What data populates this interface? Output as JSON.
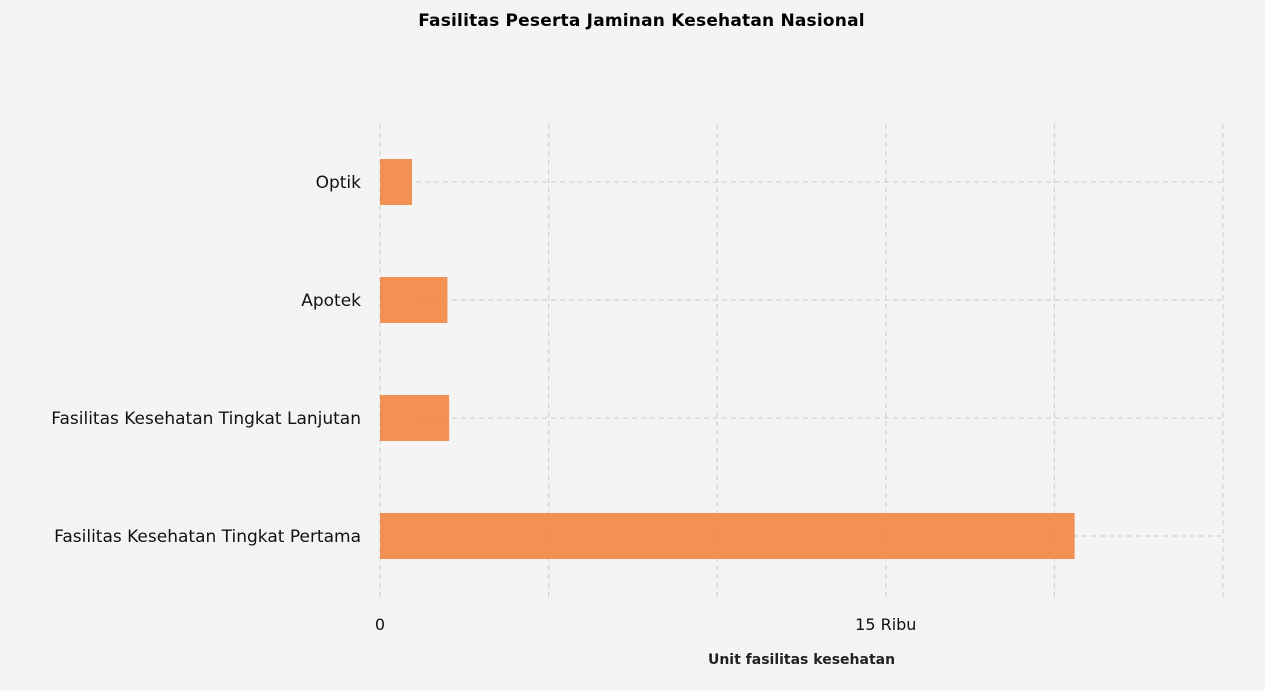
{
  "chart_data": {
    "type": "bar",
    "orientation": "horizontal",
    "title": "Fasilitas Peserta Jaminan Kesehatan Nasional",
    "xlabel": "Unit fasilitas kesehatan",
    "ylabel": "",
    "categories": [
      "Optik",
      "Apotek",
      "Fasilitas Kesehatan Tingkat Lanjutan",
      "Fasilitas Kesehatan Tingkat Pertama"
    ],
    "values": [
      950,
      2000,
      2050,
      20600
    ],
    "xlim": [
      0,
      25000
    ],
    "x_gridlines": [
      0,
      5000,
      10000,
      15000,
      20000,
      25000
    ],
    "x_ticks": [
      {
        "value": 0,
        "label": "0"
      },
      {
        "value": 15000,
        "label": "15 Ribu"
      }
    ],
    "grid": true,
    "bar_color": "#f28a4b"
  }
}
